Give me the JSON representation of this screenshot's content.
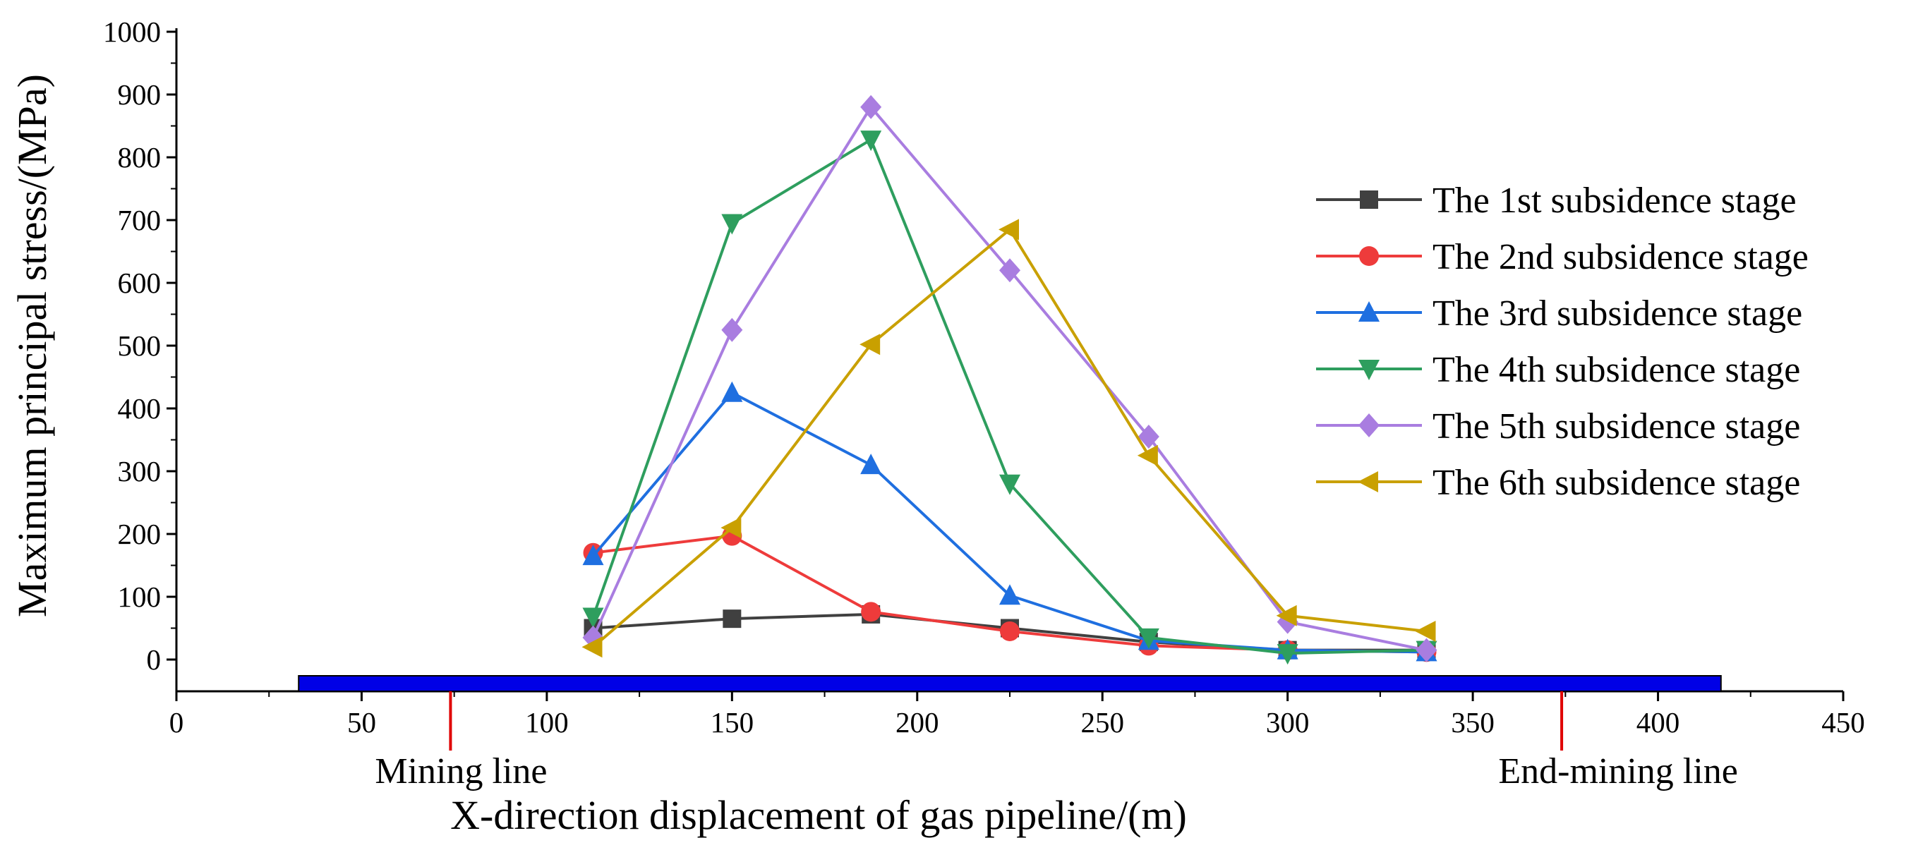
{
  "chart_data": {
    "type": "line",
    "title": "",
    "xlabel": "X-direction displacement of gas pipeline/(m)",
    "ylabel": "Maximum principal stress/(MPa)",
    "xlim": [
      0,
      450
    ],
    "ylim": [
      -50,
      1000
    ],
    "xticks": [
      0,
      50,
      100,
      150,
      200,
      250,
      300,
      350,
      400,
      450
    ],
    "yticks": [
      0,
      100,
      200,
      300,
      400,
      500,
      600,
      700,
      800,
      900,
      1000
    ],
    "x": [
      112.5,
      150,
      187.5,
      225,
      262.5,
      300,
      337.5
    ],
    "legend_position": "right",
    "series": [
      {
        "name": "The 1st subsidence stage",
        "color": "#404040",
        "marker": "square",
        "values": [
          50,
          65,
          72,
          50,
          28,
          15,
          15
        ]
      },
      {
        "name": "The 2nd subsidence stage",
        "color": "#ee3b3b",
        "marker": "circle",
        "values": [
          170,
          197,
          76,
          45,
          22,
          15,
          12
        ]
      },
      {
        "name": "The 3rd subsidence stage",
        "color": "#1f6fe0",
        "marker": "triangle-up",
        "values": [
          165,
          425,
          310,
          102,
          30,
          15,
          12
        ]
      },
      {
        "name": "The 4th subsidence stage",
        "color": "#2e9e5e",
        "marker": "triangle-down",
        "values": [
          68,
          695,
          828,
          280,
          35,
          10,
          15
        ]
      },
      {
        "name": "The 5th subsidence stage",
        "color": "#a97de0",
        "marker": "diamond",
        "values": [
          35,
          525,
          880,
          620,
          355,
          60,
          15
        ]
      },
      {
        "name": "The 6th subsidence stage",
        "color": "#c9a000",
        "marker": "triangle-left",
        "values": [
          20,
          210,
          502,
          685,
          325,
          70,
          45
        ]
      }
    ],
    "annotations": [
      {
        "text": "Mining line",
        "x": 74,
        "color": "#e00000"
      },
      {
        "text": "End-mining line",
        "x": 374,
        "color": "#e00000"
      }
    ],
    "pipeline_bar": {
      "x_start": 33,
      "x_end": 417,
      "color": "#0000e6"
    }
  }
}
